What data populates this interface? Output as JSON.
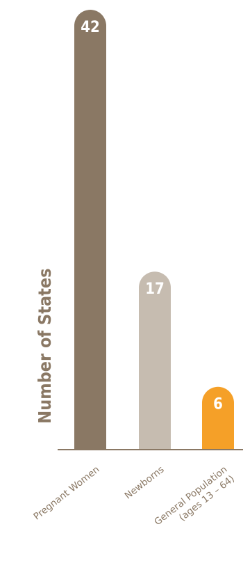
{
  "chart_data": {
    "type": "bar",
    "title": "",
    "xlabel": "",
    "ylabel": "Number of States",
    "categories": [
      {
        "lines": [
          "Pregnant Women"
        ]
      },
      {
        "lines": [
          "Newborns"
        ]
      },
      {
        "lines": [
          "General Population",
          "(ages 13 – 64)"
        ]
      }
    ],
    "values": [
      42,
      17,
      6
    ],
    "colors": [
      "#8a7864",
      "#c6bcb0",
      "#f5a028"
    ],
    "axis_color": "#8a7864",
    "ylim": [
      0,
      42
    ],
    "grid": false,
    "legend": "none"
  }
}
